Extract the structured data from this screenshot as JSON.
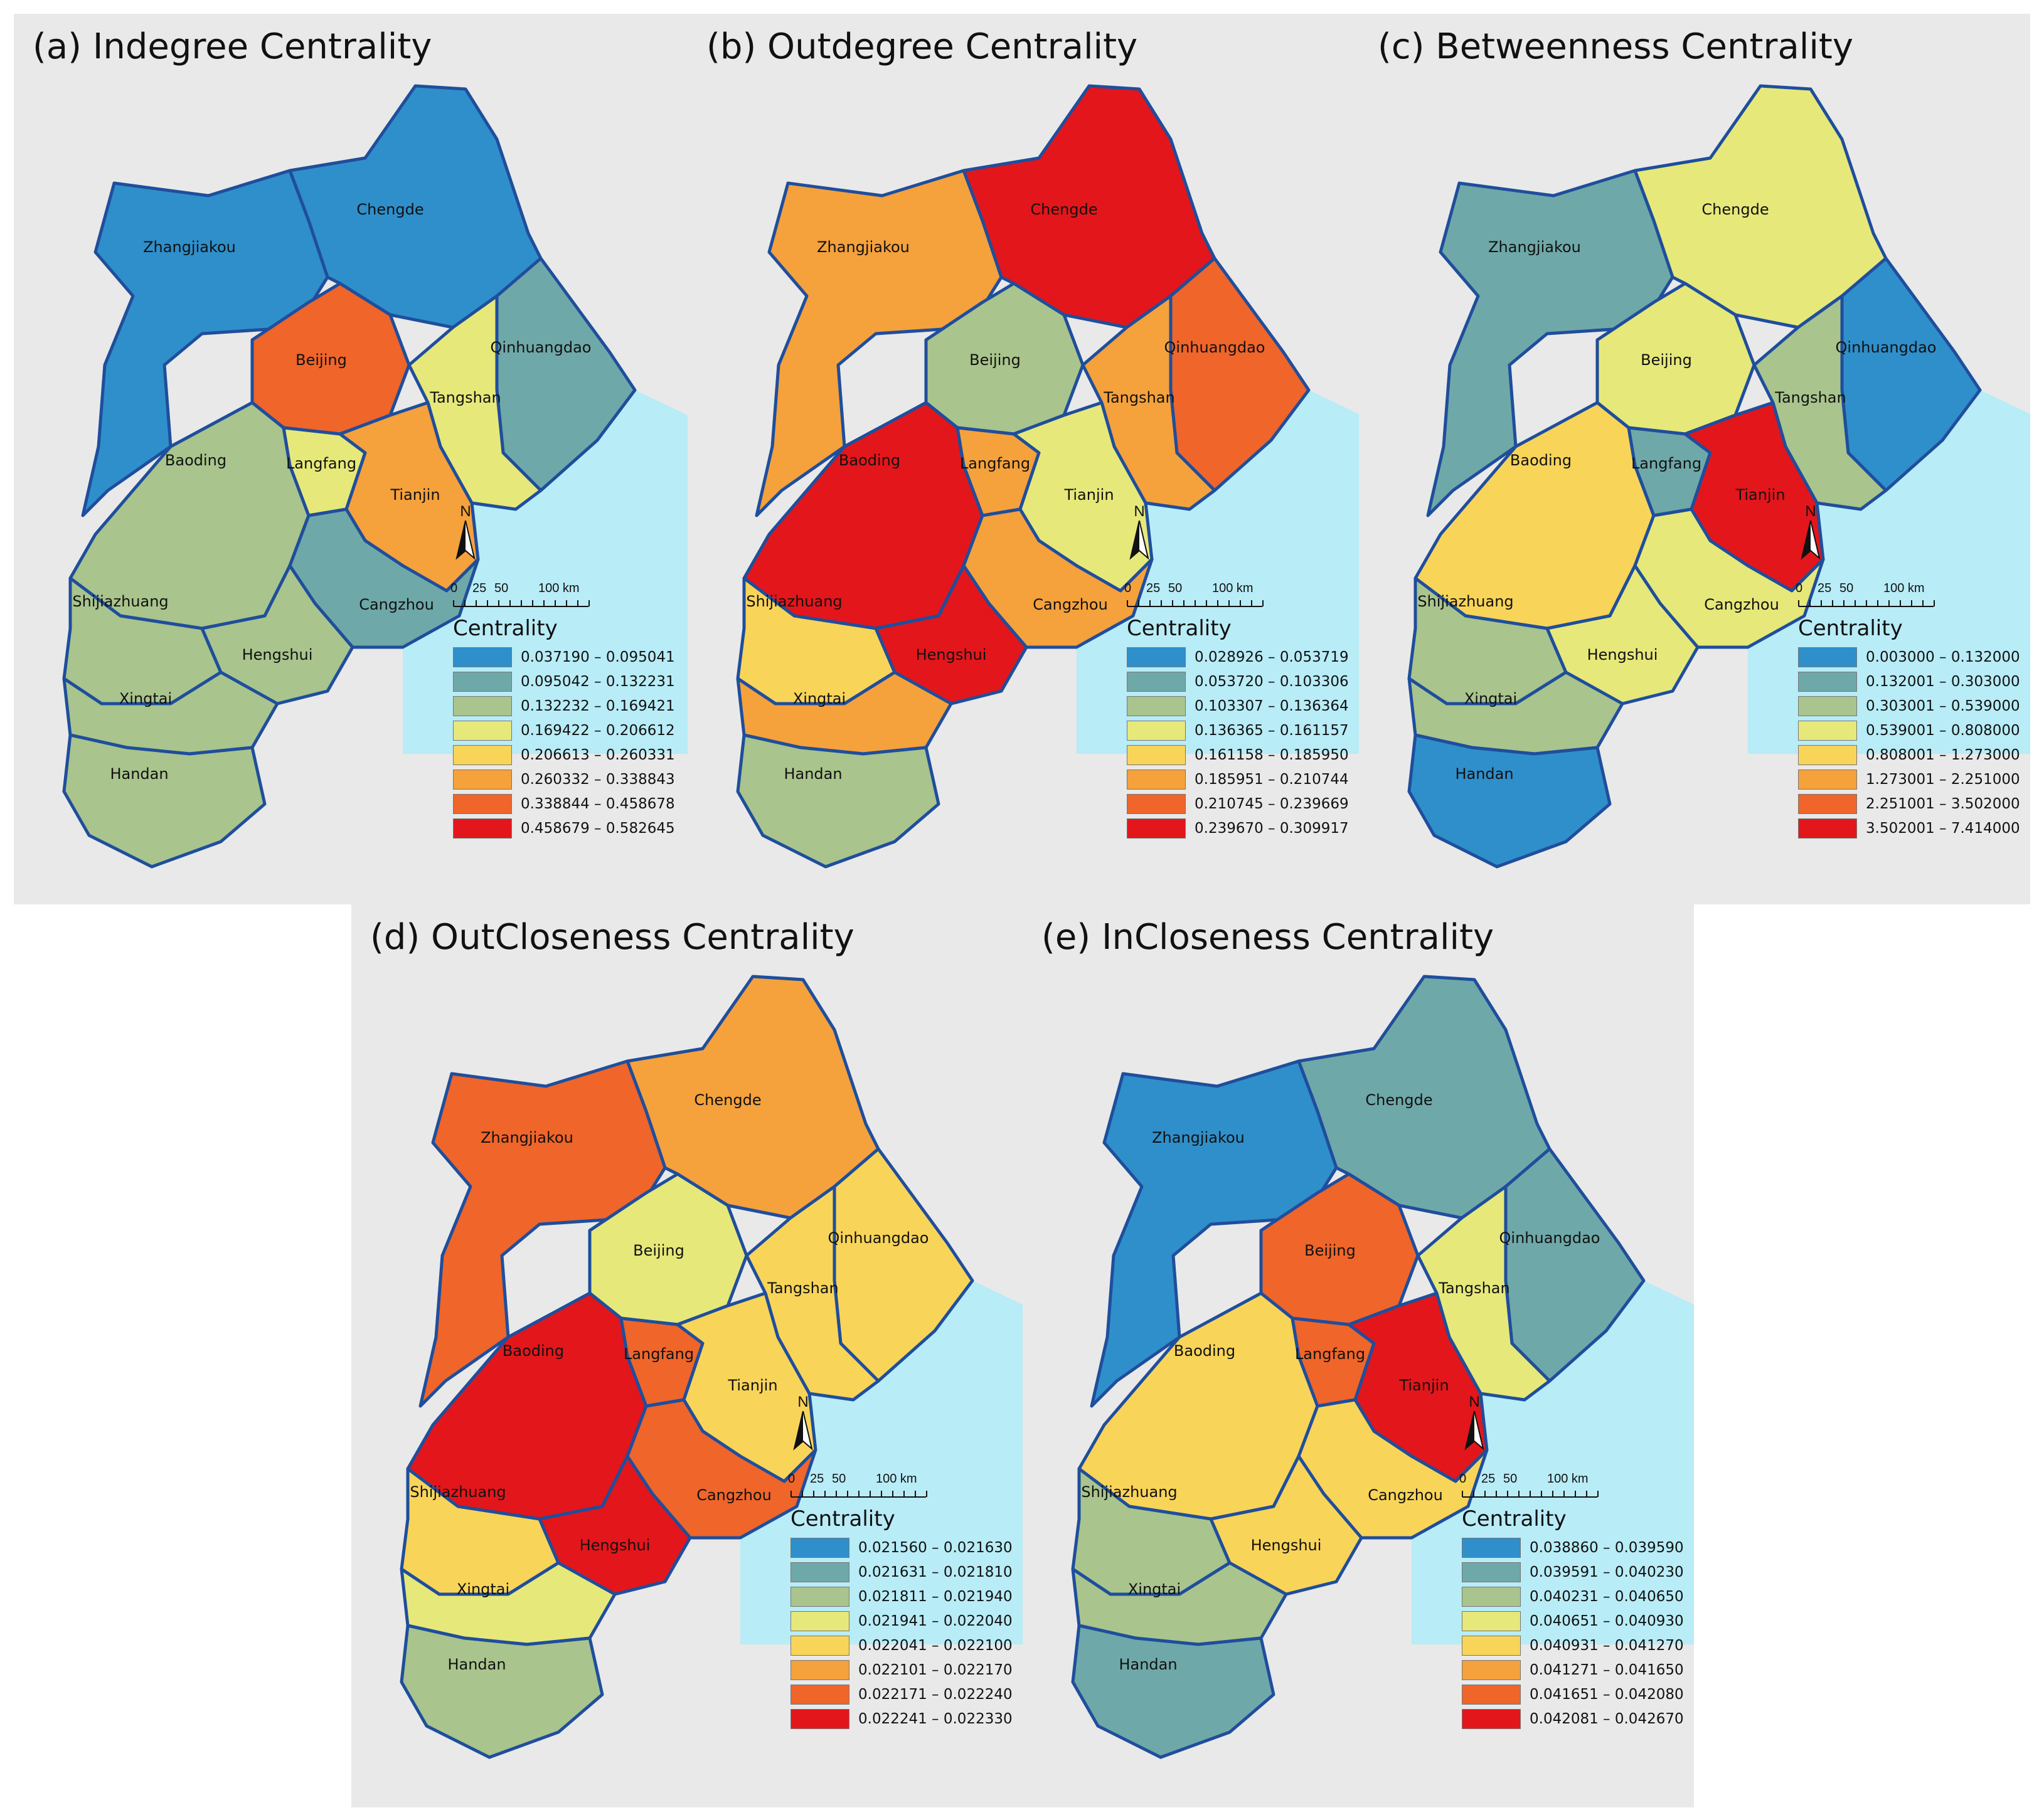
{
  "figure": {
    "cities": [
      "Chengde",
      "Zhangjiakou",
      "Qinhuangdao",
      "Beijing",
      "Tangshan",
      "Baoding",
      "Langfang",
      "Tianjin",
      "Shijiazhuang",
      "Cangzhou",
      "Hengshui",
      "Xingtai",
      "Handan"
    ],
    "north_label": "N",
    "scale_labels": [
      "0",
      "25",
      "50",
      "100 km"
    ],
    "legend_title": "Centrality",
    "colors": [
      "#2f8fca",
      "#6fa8a8",
      "#a9c48c",
      "#e6e87a",
      "#f8d459",
      "#f5a13c",
      "#ef652a",
      "#e3161b"
    ]
  },
  "chart_data": [
    {
      "type": "map",
      "title": "(a) Indegree Centrality",
      "legend_ranges": [
        "0.037190 – 0.095041",
        "0.095042 – 0.132231",
        "0.132232 – 0.169421",
        "0.169422 – 0.206612",
        "0.206613 – 0.260331",
        "0.260332 – 0.338843",
        "0.338844 – 0.458678",
        "0.458679 – 0.582645"
      ],
      "city_class": {
        "Chengde": 0,
        "Zhangjiakou": 0,
        "Qinhuangdao": 1,
        "Beijing": 6,
        "Tangshan": 3,
        "Baoding": 2,
        "Langfang": 3,
        "Tianjin": 5,
        "Shijiazhuang": 2,
        "Cangzhou": 1,
        "Hengshui": 2,
        "Xingtai": 2,
        "Handan": 2
      }
    },
    {
      "type": "map",
      "title": "(b) Outdegree Centrality",
      "legend_ranges": [
        "0.028926 – 0.053719",
        "0.053720 – 0.103306",
        "0.103307 – 0.136364",
        "0.136365 – 0.161157",
        "0.161158 – 0.185950",
        "0.185951 – 0.210744",
        "0.210745 – 0.239669",
        "0.239670 – 0.309917"
      ],
      "city_class": {
        "Chengde": 7,
        "Zhangjiakou": 5,
        "Qinhuangdao": 6,
        "Beijing": 2,
        "Tangshan": 5,
        "Baoding": 7,
        "Langfang": 5,
        "Tianjin": 3,
        "Shijiazhuang": 4,
        "Cangzhou": 5,
        "Hengshui": 7,
        "Xingtai": 5,
        "Handan": 2
      }
    },
    {
      "type": "map",
      "title": "(c) Betweenness Centrality",
      "legend_ranges": [
        "0.003000 – 0.132000",
        "0.132001 – 0.303000",
        "0.303001 – 0.539000",
        "0.539001 – 0.808000",
        "0.808001 – 1.273000",
        "1.273001 – 2.251000",
        "2.251001 – 3.502000",
        "3.502001 – 7.414000"
      ],
      "city_class": {
        "Chengde": 3,
        "Zhangjiakou": 1,
        "Qinhuangdao": 0,
        "Beijing": 3,
        "Tangshan": 2,
        "Baoding": 4,
        "Langfang": 1,
        "Tianjin": 7,
        "Shijiazhuang": 2,
        "Cangzhou": 3,
        "Hengshui": 3,
        "Xingtai": 2,
        "Handan": 0
      }
    },
    {
      "type": "map",
      "title": "(d) OutCloseness Centrality",
      "legend_ranges": [
        "0.021560 – 0.021630",
        "0.021631 – 0.021810",
        "0.021811 – 0.021940",
        "0.021941 – 0.022040",
        "0.022041 – 0.022100",
        "0.022101 – 0.022170",
        "0.022171 – 0.022240",
        "0.022241 – 0.022330"
      ],
      "city_class": {
        "Chengde": 5,
        "Zhangjiakou": 6,
        "Qinhuangdao": 4,
        "Beijing": 3,
        "Tangshan": 4,
        "Baoding": 7,
        "Langfang": 6,
        "Tianjin": 4,
        "Shijiazhuang": 4,
        "Cangzhou": 6,
        "Hengshui": 7,
        "Xingtai": 3,
        "Handan": 2
      }
    },
    {
      "type": "map",
      "title": "(e) InCloseness Centrality",
      "legend_ranges": [
        "0.038860 – 0.039590",
        "0.039591 – 0.040230",
        "0.040231 – 0.040650",
        "0.040651 – 0.040930",
        "0.040931 – 0.041270",
        "0.041271 – 0.041650",
        "0.041651 – 0.042080",
        "0.042081 – 0.042670"
      ],
      "city_class": {
        "Chengde": 1,
        "Zhangjiakou": 0,
        "Qinhuangdao": 1,
        "Beijing": 6,
        "Tangshan": 3,
        "Baoding": 4,
        "Langfang": 6,
        "Tianjin": 7,
        "Shijiazhuang": 2,
        "Cangzhou": 4,
        "Hengshui": 4,
        "Xingtai": 2,
        "Handan": 1
      }
    }
  ]
}
